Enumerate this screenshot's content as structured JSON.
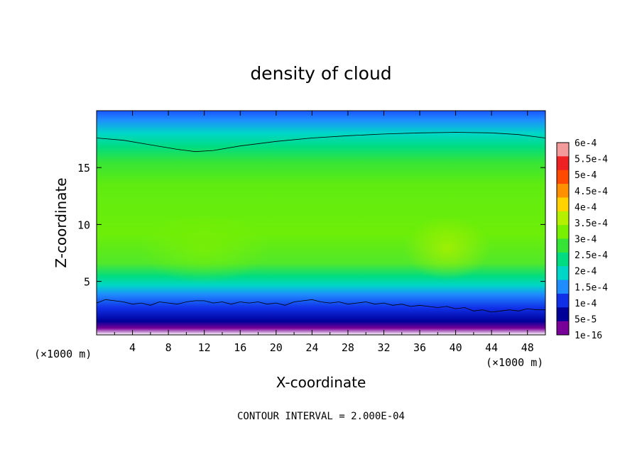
{
  "chart_data": {
    "type": "heatmap",
    "title": "density of cloud",
    "xlabel": "X-coordinate",
    "ylabel": "Z-coordinate",
    "x_unit": "(×1000 m)",
    "x_ticks": [
      4,
      8,
      12,
      16,
      20,
      24,
      28,
      32,
      36,
      40,
      44,
      48
    ],
    "y_ticks": [
      5,
      10,
      15
    ],
    "xlim": [
      0,
      50
    ],
    "ylim": [
      0.3,
      20
    ],
    "colorbar": {
      "labels": [
        "6e-4",
        "5.5e-4",
        "5e-4",
        "4.5e-4",
        "4e-4",
        "3.5e-4",
        "3e-4",
        "2.5e-4",
        "2e-4",
        "1.5e-4",
        "1e-4",
        "5e-5",
        "1e-16"
      ],
      "colors": [
        "#f39a9a",
        "#ee2222",
        "#ff4a00",
        "#ff9100",
        "#ffd200",
        "#b4f000",
        "#78f000",
        "#36e436",
        "#00dc82",
        "#00d6c8",
        "#1f8cff",
        "#1030e8",
        "#000098",
        "#780098"
      ]
    },
    "contour_lines": [
      {
        "level": "1e-4",
        "points": [
          [
            0,
            3.1
          ],
          [
            1,
            3.4
          ],
          [
            2,
            3.3
          ],
          [
            3,
            3.2
          ],
          [
            4,
            3.0
          ],
          [
            5,
            3.1
          ],
          [
            6,
            2.9
          ],
          [
            7,
            3.2
          ],
          [
            8,
            3.1
          ],
          [
            9,
            3.0
          ],
          [
            10,
            3.2
          ],
          [
            11,
            3.3
          ],
          [
            12,
            3.3
          ],
          [
            13,
            3.1
          ],
          [
            14,
            3.2
          ],
          [
            15,
            3.0
          ],
          [
            16,
            3.2
          ],
          [
            17,
            3.1
          ],
          [
            18,
            3.2
          ],
          [
            19,
            3.0
          ],
          [
            20,
            3.1
          ],
          [
            21,
            2.9
          ],
          [
            22,
            3.2
          ],
          [
            23,
            3.3
          ],
          [
            24,
            3.4
          ],
          [
            25,
            3.2
          ],
          [
            26,
            3.1
          ],
          [
            27,
            3.2
          ],
          [
            28,
            3.0
          ],
          [
            29,
            3.1
          ],
          [
            30,
            3.2
          ],
          [
            31,
            3.0
          ],
          [
            32,
            3.1
          ],
          [
            33,
            2.9
          ],
          [
            34,
            3.0
          ],
          [
            35,
            2.8
          ],
          [
            36,
            2.9
          ],
          [
            37,
            2.8
          ],
          [
            38,
            2.7
          ],
          [
            39,
            2.8
          ],
          [
            40,
            2.6
          ],
          [
            41,
            2.7
          ],
          [
            42,
            2.4
          ],
          [
            43,
            2.5
          ],
          [
            44,
            2.3
          ],
          [
            45,
            2.4
          ],
          [
            46,
            2.5
          ],
          [
            47,
            2.4
          ],
          [
            48,
            2.6
          ],
          [
            49,
            2.5
          ],
          [
            50,
            2.5
          ]
        ]
      },
      {
        "level": "1.5e-4",
        "points": [
          [
            0,
            17.6
          ],
          [
            3,
            17.4
          ],
          [
            6,
            17.0
          ],
          [
            9,
            16.6
          ],
          [
            11,
            16.4
          ],
          [
            13,
            16.5
          ],
          [
            16,
            16.9
          ],
          [
            20,
            17.3
          ],
          [
            24,
            17.6
          ],
          [
            28,
            17.8
          ],
          [
            32,
            17.95
          ],
          [
            36,
            18.05
          ],
          [
            40,
            18.1
          ],
          [
            44,
            18.05
          ],
          [
            47,
            17.9
          ],
          [
            50,
            17.6
          ]
        ]
      }
    ],
    "annotation": "CONTOUR INTERVAL = 2.000E-04"
  }
}
